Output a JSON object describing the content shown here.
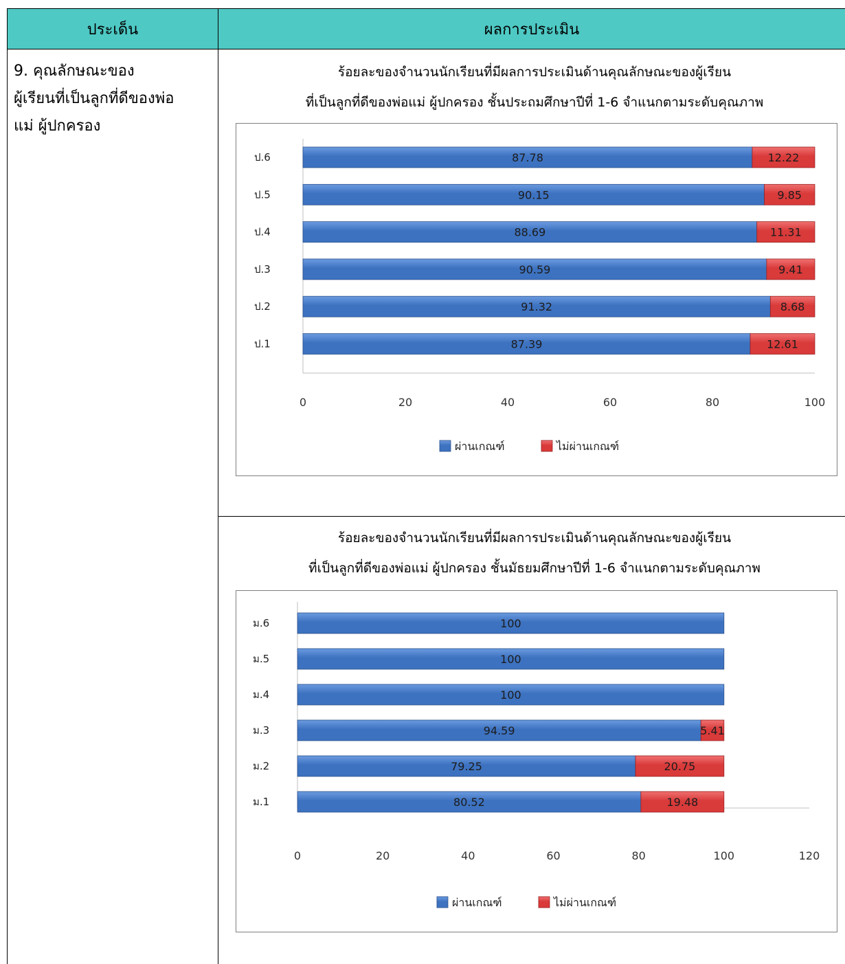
{
  "table": {
    "header_left": "ประเด็น",
    "header_right": "ผลการประเมิน",
    "issue_lines": [
      "9. คุณลักษณะของ",
      "ผู้เรียนที่เป็นลูกที่ดีของพ่อ",
      "แม่ ผู้ปกครอง"
    ]
  },
  "colors": {
    "header_bg": "#4ec9c4",
    "pass": "#3d72c0",
    "fail": "#d93a3a"
  },
  "chart_data": [
    {
      "type": "bar",
      "orientation": "horizontal",
      "stacked": true,
      "title_lines": [
        "ร้อยละของจำนวนนักเรียนที่มีผลการประเมินด้านคุณลักษณะของผู้เรียน",
        "ที่เป็นลูกที่ดีของพ่อแม่ ผู้ปกครอง ชั้นประถมศึกษาปีที่ 1-6 จำแนกตามระดับคุณภาพ"
      ],
      "categories": [
        "ป.6",
        "ป.5",
        "ป.4",
        "ป.3",
        "ป.2",
        "ป.1"
      ],
      "series": [
        {
          "name": "ผ่านเกณฑ์",
          "values": [
            87.78,
            90.15,
            88.69,
            90.59,
            91.32,
            87.39
          ],
          "labels": [
            "87.78",
            "90.15",
            "88.69",
            "90.59",
            "91.32",
            "87.39"
          ]
        },
        {
          "name": "ไม่ผ่านเกณฑ์",
          "values": [
            12.22,
            9.85,
            11.31,
            9.41,
            8.68,
            12.61
          ],
          "labels": [
            "12.22",
            "9.85",
            "11.31",
            "9.41",
            "8.68",
            "12.61"
          ]
        }
      ],
      "xlim": [
        0,
        100
      ],
      "xticks": [
        "0",
        "20",
        "40",
        "60",
        "80",
        "100"
      ],
      "legend": "bottom"
    },
    {
      "type": "bar",
      "orientation": "horizontal",
      "stacked": true,
      "title_lines": [
        "ร้อยละของจำนวนนักเรียนที่มีผลการประเมินด้านคุณลักษณะของผู้เรียน",
        "ที่เป็นลูกที่ดีของพ่อแม่ ผู้ปกครอง ชั้นมัธยมศึกษาปีที่ 1-6 จำแนกตามระดับคุณภาพ"
      ],
      "categories": [
        "ม.6",
        "ม.5",
        "ม.4",
        "ม.3",
        "ม.2",
        "ม.1"
      ],
      "series": [
        {
          "name": "ผ่านเกณฑ์",
          "values": [
            100,
            100,
            100,
            94.59,
            79.25,
            80.52
          ],
          "labels": [
            "100",
            "100",
            "100",
            "94.59",
            "79.25",
            "80.52"
          ]
        },
        {
          "name": "ไม่ผ่านเกณฑ์",
          "values": [
            0,
            0,
            0,
            5.41,
            20.75,
            19.48
          ],
          "labels": [
            "",
            "",
            "",
            "5.41",
            "20.75",
            "19.48"
          ]
        }
      ],
      "xlim": [
        0,
        120
      ],
      "xticks": [
        "0",
        "20",
        "40",
        "60",
        "80",
        "100",
        "120"
      ],
      "legend": "bottom"
    }
  ]
}
